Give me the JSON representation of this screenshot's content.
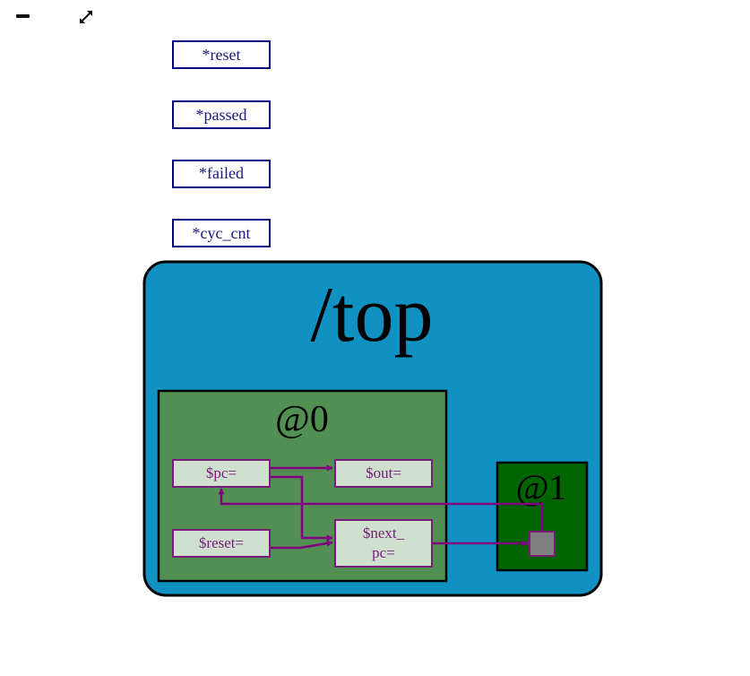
{
  "toolbar": {
    "minimize_icon": "minus-icon",
    "expand_icon": "expand-arrows-icon"
  },
  "signals": [
    {
      "label": "*reset"
    },
    {
      "label": "*passed"
    },
    {
      "label": "*failed"
    },
    {
      "label": "*cyc_cnt"
    }
  ],
  "top": {
    "label": "/top",
    "color": "#1190c2"
  },
  "stage0": {
    "label": "@0",
    "color": "#528f52",
    "nodes": {
      "pc": "$pc=",
      "out": "$out=",
      "reset": "$reset=",
      "next_pc_line1": "$next_",
      "next_pc_line2": "pc="
    }
  },
  "stage1": {
    "label": "@1",
    "color": "#006400"
  },
  "colors": {
    "signal_border": "#000080",
    "signal_text": "#1a1a7a",
    "node_fill": "#cfe0cf",
    "node_border": "#7a1a7a",
    "node_text": "#7a1a7a",
    "edge": "#800080",
    "flop_fill": "#808080"
  }
}
